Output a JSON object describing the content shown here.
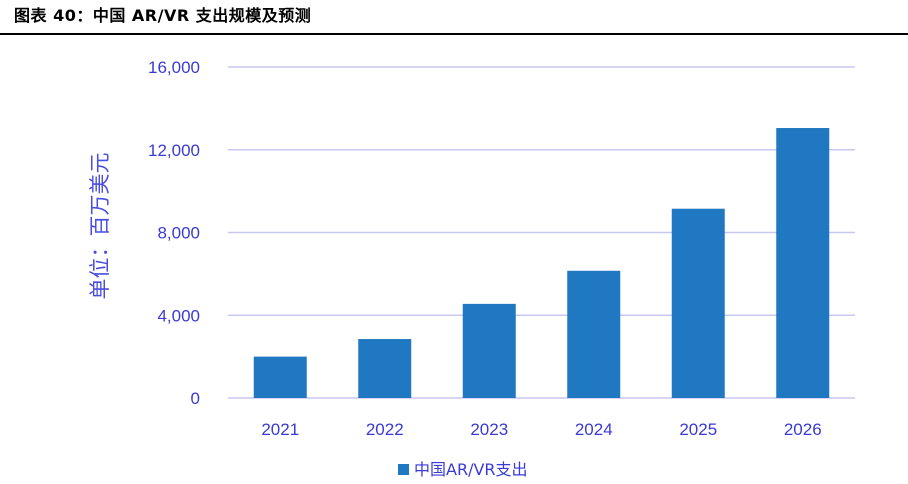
{
  "figure": {
    "title": "图表 40：中国 AR/VR 支出规模及预测"
  },
  "chart_data": {
    "type": "bar",
    "categories": [
      "2021",
      "2022",
      "2023",
      "2024",
      "2025",
      "2026"
    ],
    "series": [
      {
        "name": "中国AR/VR支出",
        "values": [
          2000,
          2850,
          4550,
          6150,
          9150,
          13050
        ],
        "color": "#1f78c1"
      }
    ],
    "ylabel": "单位：百万美元",
    "xlabel": "",
    "ylim": [
      0,
      16000
    ],
    "yticks": [
      0,
      4000,
      8000,
      12000,
      16000
    ],
    "ytick_labels": [
      "0",
      "4,000",
      "8,000",
      "12,000",
      "16,000"
    ],
    "grid": true,
    "gridline_color": "#c8c8f0",
    "legend_position": "bottom-center"
  }
}
